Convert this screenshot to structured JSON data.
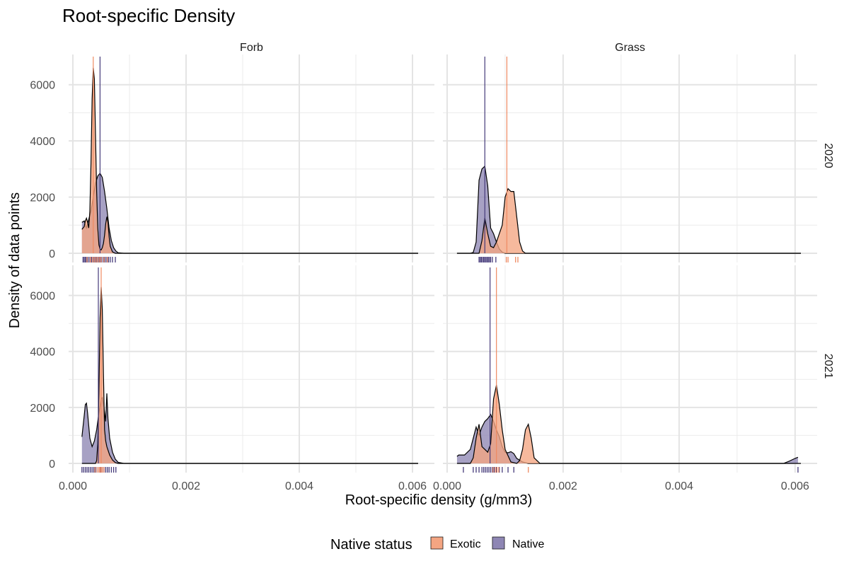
{
  "chart_data": {
    "type": "area",
    "title": "Root-specific Density",
    "xlabel": "Root-specific density (g/mm3)",
    "ylabel": "Density of data points",
    "facet_cols": [
      "Forb",
      "Grass"
    ],
    "facet_rows": [
      "2020",
      "2021"
    ],
    "xlim": [
      0,
      0.0061
    ],
    "ylim": [
      0,
      7000
    ],
    "x_ticks": [
      0.0,
      0.002,
      0.004,
      0.006
    ],
    "x_tick_labels": [
      "0.000",
      "0.002",
      "0.004",
      "0.006"
    ],
    "y_ticks": [
      0,
      2000,
      4000,
      6000
    ],
    "y_tick_labels": [
      "0",
      "2000",
      "4000",
      "6000"
    ],
    "grid": true,
    "legend": {
      "title": "Native status",
      "position": "bottom",
      "entries": [
        {
          "name": "Exotic",
          "fill": "#f4a582"
        },
        {
          "name": "Native",
          "fill": "#8e86b4"
        }
      ]
    },
    "colors": {
      "exotic_line": "#ef8a62",
      "native_line": "#453a7a",
      "rug_exotic": "#ef8a62",
      "rug_native": "#453a7a"
    },
    "panels": [
      {
        "col": "Forb",
        "row": "2020",
        "series": [
          {
            "name": "Native",
            "mean": 0.00048,
            "x": [
              0.00016,
              0.0002,
              0.00024,
              0.00028,
              0.00032,
              0.00036,
              0.0004,
              0.00044,
              0.00048,
              0.00052,
              0.00056,
              0.0006,
              0.00064,
              0.00068,
              0.00072,
              0.00076,
              0.0008,
              0.0009,
              0.001,
              0.002,
              0.003,
              0.004,
              0.005,
              0.0061
            ],
            "y": [
              1100,
              1150,
              900,
              1200,
              1500,
              2000,
              2500,
              2750,
              2850,
              2700,
              2200,
              1600,
              900,
              450,
              200,
              80,
              20,
              0,
              0,
              0,
              0,
              0,
              0,
              0
            ]
          },
          {
            "name": "Exotic",
            "mean": 0.00036,
            "x": [
              0.00016,
              0.0002,
              0.00022,
              0.00024,
              0.00026,
              0.00028,
              0.0003,
              0.00032,
              0.00034,
              0.00036,
              0.00038,
              0.0004,
              0.00042,
              0.00044,
              0.00046,
              0.00048,
              0.0005,
              0.00052,
              0.00054,
              0.00056,
              0.00058,
              0.0006,
              0.00062,
              0.00064,
              0.00066,
              0.0007,
              0.00075,
              0.0008,
              0.0009,
              0.001,
              0.002,
              0.003,
              0.004,
              0.005,
              0.0061
            ],
            "y": [
              850,
              950,
              1150,
              1250,
              1100,
              900,
              1500,
              3200,
              5500,
              6600,
              6200,
              4200,
              2200,
              900,
              300,
              150,
              120,
              200,
              350,
              650,
              1050,
              1300,
              1100,
              600,
              250,
              50,
              0,
              0,
              0,
              0,
              0,
              0,
              0,
              0,
              0
            ]
          }
        ],
        "rug": {
          "Exotic": [
            0.00025,
            0.00031,
            0.00035,
            0.00038,
            0.00041,
            0.00044,
            0.00047,
            0.0005,
            0.00055,
            0.00061
          ],
          "Native": [
            0.00018,
            0.0002,
            0.00022,
            0.00024,
            0.00027,
            0.0003,
            0.00033,
            0.00036,
            0.00039,
            0.00042,
            0.00045,
            0.00048,
            0.00051,
            0.00054,
            0.00057,
            0.0006,
            0.00063,
            0.00066,
            0.0007,
            0.00075
          ]
        }
      },
      {
        "col": "Grass",
        "row": "2020",
        "series": [
          {
            "name": "Native",
            "mean": 0.00065,
            "x": [
              0.00017,
              0.0002,
              0.0003,
              0.0004,
              0.00045,
              0.0005,
              0.00055,
              0.0006,
              0.00065,
              0.0007,
              0.00075,
              0.0008,
              0.00085,
              0.0009,
              0.00095,
              0.001,
              0.0011,
              0.0012,
              0.002,
              0.003,
              0.004,
              0.005,
              0.0061
            ],
            "y": [
              0,
              0,
              0,
              0,
              30,
              400,
              2600,
              3000,
              3100,
              2400,
              900,
              700,
              400,
              150,
              40,
              0,
              0,
              0,
              0,
              0,
              0,
              0,
              0
            ]
          },
          {
            "name": "Exotic",
            "mean": 0.00103,
            "x": [
              0.00017,
              0.0002,
              0.0003,
              0.0004,
              0.0005,
              0.00055,
              0.0006,
              0.00065,
              0.0007,
              0.00075,
              0.0008,
              0.00085,
              0.0009,
              0.00095,
              0.001,
              0.00105,
              0.0011,
              0.00115,
              0.0012,
              0.00125,
              0.0013,
              0.00135,
              0.0014,
              0.0015,
              0.002,
              0.003,
              0.004,
              0.005,
              0.0061
            ],
            "y": [
              0,
              0,
              0,
              0,
              0,
              0,
              450,
              1250,
              700,
              250,
              200,
              400,
              700,
              1000,
              2000,
              2300,
              2200,
              2200,
              1300,
              400,
              80,
              0,
              0,
              0,
              0,
              0,
              0,
              0,
              0
            ]
          }
        ],
        "rug": {
          "Exotic": [
            0.00102,
            0.00105,
            0.00118,
            0.00122
          ],
          "Native": [
            0.00055,
            0.00057,
            0.00059,
            0.00061,
            0.00063,
            0.00065,
            0.00067,
            0.00069,
            0.00071,
            0.00073,
            0.00075,
            0.00078,
            0.00084
          ]
        }
      },
      {
        "col": "Forb",
        "row": "2021",
        "series": [
          {
            "name": "Native",
            "mean": 0.00045,
            "x": [
              0.00016,
              0.0002,
              0.00022,
              0.00024,
              0.00026,
              0.0003,
              0.00034,
              0.00038,
              0.00042,
              0.00046,
              0.0005,
              0.00052,
              0.00055,
              0.00058,
              0.0006,
              0.00062,
              0.00065,
              0.0007,
              0.00075,
              0.0008,
              0.0009,
              0.001,
              0.002,
              0.003,
              0.004,
              0.005,
              0.0061
            ],
            "y": [
              950,
              1700,
              2100,
              2150,
              1800,
              900,
              600,
              800,
              1200,
              1800,
              2300,
              2350,
              2000,
              1500,
              2500,
              1600,
              900,
              400,
              150,
              40,
              0,
              0,
              0,
              0,
              0,
              0,
              0
            ]
          },
          {
            "name": "Exotic",
            "mean": 0.0005,
            "x": [
              0.00016,
              0.0002,
              0.0003,
              0.0004,
              0.00042,
              0.00044,
              0.00046,
              0.00048,
              0.0005,
              0.00052,
              0.00054,
              0.00056,
              0.00058,
              0.0006,
              0.00065,
              0.0007,
              0.00075,
              0.0008,
              0.0009,
              0.001,
              0.002,
              0.003,
              0.004,
              0.005,
              0.0061
            ],
            "y": [
              0,
              0,
              0,
              0,
              100,
              700,
              2500,
              5200,
              6300,
              5500,
              3200,
              1200,
              800,
              600,
              300,
              120,
              30,
              0,
              0,
              0,
              0,
              0,
              0,
              0,
              0
            ]
          }
        ],
        "rug": {
          "Exotic": [
            0.00039,
            0.00043,
            0.00046,
            0.00048,
            0.0005,
            0.00052,
            0.00055
          ],
          "Native": [
            0.00016,
            0.00019,
            0.00022,
            0.00025,
            0.00028,
            0.00031,
            0.00034,
            0.00037,
            0.0004,
            0.00043,
            0.00046,
            0.00049,
            0.00052,
            0.00055,
            0.00058,
            0.00061,
            0.00064,
            0.00068,
            0.00072,
            0.00076
          ]
        }
      },
      {
        "col": "Grass",
        "row": "2021",
        "series": [
          {
            "name": "Native",
            "mean": 0.00074,
            "x": [
              0.00017,
              0.0002,
              0.0003,
              0.0004,
              0.0005,
              0.00055,
              0.0006,
              0.00065,
              0.0007,
              0.00075,
              0.0008,
              0.00085,
              0.0009,
              0.00095,
              0.001,
              0.00105,
              0.0011,
              0.00115,
              0.0012,
              0.0013,
              0.0014,
              0.002,
              0.003,
              0.004,
              0.005,
              0.0058,
              0.0059,
              0.006,
              0.00605
            ],
            "y": [
              250,
              300,
              300,
              500,
              1300,
              1000,
              1300,
              1500,
              1600,
              1750,
              1500,
              1200,
              950,
              600,
              400,
              380,
              420,
              350,
              180,
              50,
              0,
              0,
              0,
              0,
              0,
              0,
              80,
              180,
              220
            ]
          },
          {
            "name": "Exotic",
            "mean": 0.00085,
            "x": [
              0.00017,
              0.0002,
              0.0003,
              0.0004,
              0.00045,
              0.0005,
              0.00055,
              0.0006,
              0.00065,
              0.0007,
              0.00075,
              0.0008,
              0.00085,
              0.0009,
              0.00095,
              0.001,
              0.0011,
              0.0012,
              0.00125,
              0.0013,
              0.00135,
              0.0014,
              0.00145,
              0.0015,
              0.0016,
              0.002,
              0.003,
              0.004,
              0.005,
              0.0061
            ],
            "y": [
              0,
              0,
              0,
              0,
              200,
              900,
              1400,
              600,
              500,
              400,
              700,
              2300,
              2800,
              2100,
              1200,
              500,
              50,
              0,
              100,
              500,
              1200,
              1400,
              900,
              200,
              0,
              0,
              0,
              0,
              0,
              0
            ]
          }
        ],
        "rug": {
          "Exotic": [
            0.00079,
            0.00083,
            0.00086,
            0.00089,
            0.0014
          ],
          "Native": [
            0.00028,
            0.00045,
            0.0005,
            0.00055,
            0.0006,
            0.00063,
            0.00066,
            0.00069,
            0.00072,
            0.00075,
            0.00078,
            0.00081,
            0.00085,
            0.0009,
            0.00095,
            0.00105,
            0.00115,
            0.00605
          ]
        }
      }
    ]
  }
}
